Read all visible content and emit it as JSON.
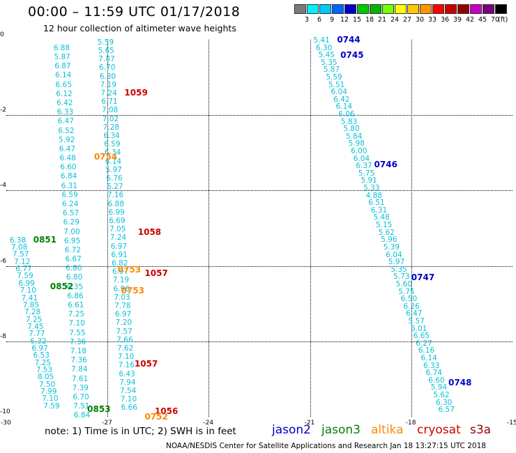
{
  "title": "00:00 – 11:59 UTC 01/17/2018",
  "subtitle": "12 hour collection of altimeter wave heights",
  "scale": {
    "unit": "(ft)",
    "labels": [
      "3",
      "6",
      "9",
      "12",
      "15",
      "18",
      "21",
      "24",
      "27",
      "30",
      "33",
      "36",
      "39",
      "42",
      "45",
      "70"
    ],
    "colors": [
      "#7a7a7a",
      "#00f0ff",
      "#00c8ff",
      "#0064ff",
      "#0000c8",
      "#00c800",
      "#00b400",
      "#78ff00",
      "#ffff00",
      "#ffc800",
      "#ff9600",
      "#ff0000",
      "#c80000",
      "#960000",
      "#c800c8",
      "#780078",
      "#000000"
    ]
  },
  "axes": {
    "x_ticks": [
      "-30",
      "-27",
      "-24",
      "-21",
      "-18",
      "-15"
    ],
    "y_ticks": [
      "0",
      "-2",
      "-4",
      "-6",
      "-8",
      "-10"
    ],
    "xlim": [
      -30,
      -15
    ],
    "ylim": [
      -10,
      0
    ]
  },
  "legend": [
    {
      "name": "jason2",
      "color": "#0000cc"
    },
    {
      "name": "jason3",
      "color": "#008000"
    },
    {
      "name": "altika",
      "color": "#ff8800"
    },
    {
      "name": "cryosat",
      "color": "#cc0000"
    },
    {
      "name": "s3a",
      "color": "#990000"
    }
  ],
  "note": "note: 1) Time is in UTC; 2) SWH is in feet",
  "footer": "NOAA/NESDIS Center for Satellite Applications and Research     Jan 18 13:27:15 UTC 2018",
  "tracks": [
    {
      "x0": -28.6,
      "y0": -0.2,
      "x1": -28.0,
      "y1": -9.95,
      "values": [
        "6.88",
        "5.87",
        "6.87",
        "6.14",
        "6.65",
        "6.12",
        "6.42",
        "6.33",
        "6.47",
        "6.52",
        "5.92",
        "6.47",
        "6.48",
        "6.60",
        "6.84",
        "6.31",
        "6.59",
        "6.24",
        "6.57",
        "6.29",
        "7.00",
        "6.95",
        "6.72",
        "6.67",
        "6.80",
        "6.80",
        "6.35",
        "6.86",
        "6.61",
        "7.25",
        "7.10",
        "7.55",
        "7.36",
        "7.18",
        "7.36",
        "7.84",
        "7.61",
        "7.39",
        "6.70",
        "7.51",
        "6.84"
      ]
    },
    {
      "x0": -27.3,
      "y0": -0.05,
      "x1": -26.6,
      "y1": -9.75,
      "values": [
        "5.59",
        "5.65",
        "7.87",
        "6.70",
        "6.30",
        "7.19",
        "7.24",
        "6.71",
        "7.08",
        "7.02",
        "7.28",
        "6.34",
        "6.59",
        "6.34",
        "6.14",
        "5.97",
        "6.76",
        "6.27",
        "7.16",
        "6.88",
        "6.99",
        "6.69",
        "7.05",
        "7.24",
        "6.97",
        "6.91",
        "6.82",
        "6.97",
        "7.19",
        "6.96",
        "7.03",
        "7.78",
        "6.97",
        "7.20",
        "7.57",
        "7.66",
        "7.62",
        "7.10",
        "7.16",
        "6.43",
        "7.94",
        "7.54",
        "7.10",
        "6.66"
      ]
    },
    {
      "x0": -29.9,
      "y0": -5.3,
      "x1": -28.9,
      "y1": -9.7,
      "values": [
        "6.38",
        "7.08",
        "7.57",
        "7.12",
        "6.77",
        "7.59",
        "6.99",
        "7.10",
        "7.41",
        "7.85",
        "7.28",
        "7.25",
        "7.45",
        "7.77",
        "6.32",
        "6.97",
        "6.53",
        "7.25",
        "7.53",
        "8.05",
        "7.50",
        "7.99",
        "7.10",
        "7.59"
      ]
    },
    {
      "x0": -20.9,
      "y0": -0.0,
      "x1": -17.2,
      "y1": -9.8,
      "values": [
        "5.41",
        "6.30",
        "5.45",
        "5.35",
        "5.87",
        "5.59",
        "5.51",
        "6.04",
        "6.42",
        "6.14",
        "6.06",
        "5.83",
        "5.80",
        "5.84",
        "5.98",
        "6.00",
        "6.04",
        "6.37",
        "5.75",
        "5.91",
        "5.33",
        "4.88",
        "6.51",
        "6.31",
        "5.48",
        "5.15",
        "5.62",
        "5.96",
        "5.39",
        "6.04",
        "5.97",
        "5.35",
        "5.73",
        "5.60",
        "5.75",
        "6.50",
        "6.26",
        "6.47",
        "5.57",
        "6.01",
        "6.65",
        "6.27",
        "6.16",
        "6.14",
        "6.33",
        "6.74",
        "6.60",
        "5.94",
        "5.62",
        "6.30",
        "6.57"
      ]
    }
  ],
  "time_labels": [
    {
      "text": "0744",
      "x": -20.2,
      "y": 0.0,
      "color": "#0000cc"
    },
    {
      "text": "0745",
      "x": -20.1,
      "y": -0.4,
      "color": "#0000cc"
    },
    {
      "text": "0746",
      "x": -19.1,
      "y": -3.3,
      "color": "#0000cc"
    },
    {
      "text": "0747",
      "x": -18.0,
      "y": -6.3,
      "color": "#0000cc"
    },
    {
      "text": "0748",
      "x": -16.9,
      "y": -9.1,
      "color": "#0000cc"
    },
    {
      "text": "1059",
      "x": -26.5,
      "y": -1.4,
      "color": "#cc0000"
    },
    {
      "text": "1058",
      "x": -26.1,
      "y": -5.1,
      "color": "#cc0000"
    },
    {
      "text": "1057",
      "x": -25.9,
      "y": -6.2,
      "color": "#cc0000"
    },
    {
      "text": "1057",
      "x": -26.2,
      "y": -8.6,
      "color": "#cc0000"
    },
    {
      "text": "1056",
      "x": -25.6,
      "y": -9.85,
      "color": "#cc0000"
    },
    {
      "text": "0754",
      "x": -27.4,
      "y": -3.1,
      "color": "#ff8800"
    },
    {
      "text": "0753",
      "x": -26.7,
      "y": -6.1,
      "color": "#ff8800"
    },
    {
      "text": "0753",
      "x": -26.6,
      "y": -6.65,
      "color": "#ff8800"
    },
    {
      "text": "0752",
      "x": -25.9,
      "y": -10.0,
      "color": "#ff8800"
    },
    {
      "text": "0851",
      "x": -29.2,
      "y": -5.3,
      "color": "#008000"
    },
    {
      "text": "0852",
      "x": -28.7,
      "y": -6.55,
      "color": "#008000"
    },
    {
      "text": "0853",
      "x": -27.6,
      "y": -9.8,
      "color": "#008000"
    }
  ]
}
